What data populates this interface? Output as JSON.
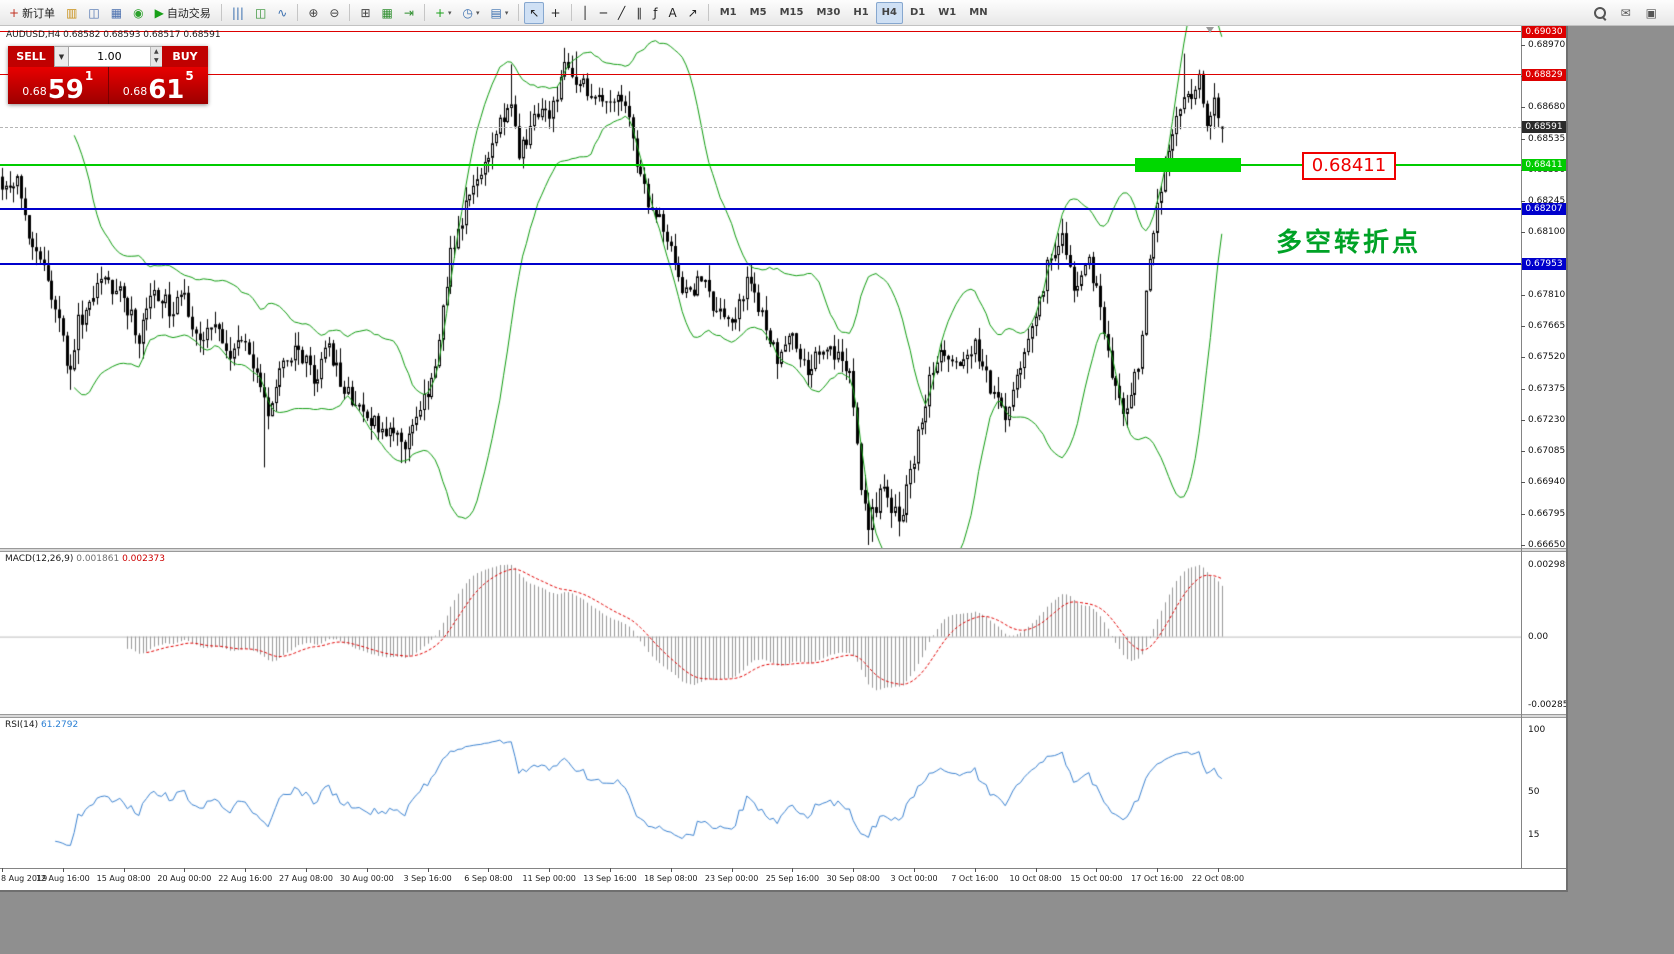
{
  "toolbar": {
    "new_order_label": "新订单",
    "autotrading_label": "自动交易",
    "groups": [
      [
        {
          "name": "new-order-button",
          "icon": "new-order-icon",
          "glyph": "+",
          "glyph_color": "#c03020",
          "label": "新订单"
        },
        {
          "name": "new-chart-button",
          "icon": "new-chart-icon",
          "glyph": "▥",
          "glyph_color": "#c89018"
        },
        {
          "name": "profiles-button",
          "icon": "profiles-icon",
          "glyph": "◫",
          "glyph_color": "#4a6fae"
        },
        {
          "name": "market-watch-button",
          "icon": "market-watch-icon",
          "glyph": "▦",
          "glyph_color": "#4a6fae"
        },
        {
          "name": "data-window-button",
          "icon": "data-window-icon",
          "glyph": "◉",
          "glyph_color": "#2aa02a"
        },
        {
          "name": "autotrading-button",
          "icon": "autotrading-play-icon",
          "glyph": "▶",
          "glyph_color": "#18a018",
          "label": "自动交易"
        }
      ],
      [
        {
          "name": "bar-chart-type-button",
          "icon": "bars-icon",
          "glyph": "|||",
          "glyph_color": "#3a6faf"
        },
        {
          "name": "candlestick-type-button",
          "icon": "candles-icon",
          "glyph": "◫",
          "glyph_color": "#2f8f2f"
        },
        {
          "name": "line-chart-type-button",
          "icon": "line-chart-icon",
          "glyph": "∿",
          "glyph_color": "#3a6faf"
        }
      ],
      [
        {
          "name": "zoom-in-button",
          "icon": "zoom-in-icon",
          "glyph": "⊕",
          "glyph_color": "#444444"
        },
        {
          "name": "zoom-out-button",
          "icon": "zoom-out-icon",
          "glyph": "⊖",
          "glyph_color": "#444444"
        }
      ],
      [
        {
          "name": "tile-windows-button",
          "icon": "tile-windows-icon",
          "glyph": "⊞",
          "glyph_color": "#444444"
        },
        {
          "name": "arrange-charts-button",
          "icon": "arrange-charts-icon",
          "glyph": "▦",
          "glyph_color": "#2f8f2f"
        },
        {
          "name": "chart-shift-button",
          "icon": "chart-shift-icon",
          "glyph": "⇥",
          "glyph_color": "#2f8f2f"
        }
      ],
      [
        {
          "name": "indicators-button",
          "icon": "indicator-plus-icon",
          "glyph": "+",
          "glyph_color": "#18a018",
          "caret": true
        },
        {
          "name": "periods-button",
          "icon": "clock-icon",
          "glyph": "◷",
          "glyph_color": "#3a6faf",
          "caret": true
        },
        {
          "name": "templates-button",
          "icon": "template-icon",
          "glyph": "▤",
          "glyph_color": "#3a6faf",
          "caret": true
        }
      ],
      [
        {
          "name": "cursor-button",
          "icon": "cursor-arrow-icon",
          "glyph": "↖",
          "glyph_color": "#222222",
          "active": true
        },
        {
          "name": "crosshair-button",
          "icon": "crosshair-icon",
          "glyph": "+",
          "glyph_color": "#222222"
        }
      ],
      [
        {
          "name": "vertical-line-tool-button",
          "icon": "vertical-line-icon",
          "glyph": "│",
          "glyph_color": "#222222"
        },
        {
          "name": "horizontal-line-tool-button",
          "icon": "horizontal-line-icon",
          "glyph": "─",
          "glyph_color": "#222222"
        },
        {
          "name": "trendline-tool-button",
          "icon": "trendline-icon",
          "glyph": "╱",
          "glyph_color": "#222222"
        },
        {
          "name": "channel-tool-button",
          "icon": "channel-icon",
          "glyph": "∥",
          "glyph_color": "#222222"
        },
        {
          "name": "fibonacci-tool-button",
          "icon": "fibonacci-icon",
          "glyph": "ƒ",
          "glyph_color": "#222222"
        },
        {
          "name": "text-tool-button",
          "icon": "text-icon",
          "glyph": "A",
          "glyph_color": "#222222"
        },
        {
          "name": "arrows-tool-button",
          "icon": "arrow-shapes-icon",
          "glyph": "↗",
          "glyph_color": "#222222"
        }
      ]
    ],
    "timeframes": [
      "M1",
      "M5",
      "M15",
      "M30",
      "H1",
      "H4",
      "D1",
      "W1",
      "MN"
    ],
    "active_timeframe": "H4",
    "right_icons": [
      {
        "name": "search-button",
        "icon": "search-icon",
        "type": "magnifier"
      },
      {
        "name": "community-button",
        "icon": "community-icon",
        "glyph": "✉",
        "glyph_color": "#555555"
      },
      {
        "name": "layout-button",
        "icon": "window-icon",
        "glyph": "▣",
        "glyph_color": "#555555"
      }
    ]
  },
  "one_click": {
    "sell_label": "SELL",
    "buy_label": "BUY",
    "volume": "1.00",
    "sell_price_small": "0.68",
    "sell_price_big": "59",
    "sell_price_sup": "1",
    "buy_price_small": "0.68",
    "buy_price_big": "61",
    "buy_price_sup": "5"
  },
  "chart": {
    "title": "AUDUSD,H4",
    "ohlc": "0.68582 0.68593 0.68517 0.68591",
    "annotation_box": "0.68411",
    "annotation_text": "多空转折点"
  },
  "macd": {
    "label": "MACD(12,26,9)",
    "value": "0.001861",
    "signal": "0.002373"
  },
  "rsi": {
    "label": "RSI(14)",
    "value": "61.2792"
  },
  "colors": {
    "level_red": "#dd0000",
    "level_green": "#00cc00",
    "level_blue": "#0000cc",
    "bollinger_green": "#0e9b0e",
    "macd_histogram": "#999999",
    "macd_signal": "#e00000",
    "rsi_line": "#3b82d0",
    "current_price_tag": "#2b2b2b",
    "highlight_green": "#00d800",
    "annotation_red": "#ef0000",
    "annotation_green": "#00a226"
  },
  "chart_data": [
    {
      "type": "candlestick",
      "title": "AUDUSD,H4",
      "symbol": "AUDUSD",
      "timeframe": "H4",
      "ohlc_current": {
        "open": 0.68582,
        "high": 0.68593,
        "low": 0.68517,
        "close": 0.68591
      },
      "current_price": 0.68591,
      "ylim": [
        0.6665,
        0.69058
      ],
      "y_axis_ticks": [
        0.6897,
        0.68825,
        0.6868,
        0.68535,
        0.6839,
        0.68245,
        0.681,
        0.67955,
        0.6781,
        0.67665,
        0.6752,
        0.67375,
        0.6723,
        0.67085,
        0.6694,
        0.66795,
        0.6665
      ],
      "bars_per_x_tick": 16,
      "x_tick_labels": [
        "8 Aug 2019",
        "12 Aug 16:00",
        "15 Aug 08:00",
        "20 Aug 00:00",
        "22 Aug 16:00",
        "27 Aug 08:00",
        "30 Aug 00:00",
        "3 Sep 16:00",
        "6 Sep 08:00",
        "11 Sep 00:00",
        "13 Sep 16:00",
        "18 Sep 08:00",
        "23 Sep 00:00",
        "25 Sep 16:00",
        "30 Sep 08:00",
        "3 Oct 00:00",
        "7 Oct 16:00",
        "10 Oct 08:00",
        "15 Oct 00:00",
        "17 Oct 16:00",
        "22 Oct 08:00"
      ],
      "close_path_anchors": [
        [
          0,
          0.6828
        ],
        [
          4,
          0.6836
        ],
        [
          8,
          0.68
        ],
        [
          12,
          0.679
        ],
        [
          16,
          0.6758
        ],
        [
          18,
          0.6745
        ],
        [
          20,
          0.6768
        ],
        [
          26,
          0.6788
        ],
        [
          32,
          0.678
        ],
        [
          36,
          0.6762
        ],
        [
          40,
          0.6784
        ],
        [
          44,
          0.6775
        ],
        [
          48,
          0.678
        ],
        [
          52,
          0.6758
        ],
        [
          56,
          0.6768
        ],
        [
          60,
          0.6755
        ],
        [
          64,
          0.676
        ],
        [
          68,
          0.6742
        ],
        [
          70,
          0.6725
        ],
        [
          74,
          0.6752
        ],
        [
          78,
          0.6756
        ],
        [
          82,
          0.6742
        ],
        [
          86,
          0.6756
        ],
        [
          90,
          0.6738
        ],
        [
          94,
          0.673
        ],
        [
          98,
          0.6722
        ],
        [
          102,
          0.6718
        ],
        [
          106,
          0.6712
        ],
        [
          110,
          0.673
        ],
        [
          114,
          0.6745
        ],
        [
          118,
          0.68
        ],
        [
          122,
          0.6822
        ],
        [
          126,
          0.6838
        ],
        [
          130,
          0.6858
        ],
        [
          134,
          0.687
        ],
        [
          136,
          0.6845
        ],
        [
          140,
          0.6862
        ],
        [
          144,
          0.6865
        ],
        [
          148,
          0.6885
        ],
        [
          152,
          0.688
        ],
        [
          156,
          0.6875
        ],
        [
          160,
          0.6868
        ],
        [
          164,
          0.6872
        ],
        [
          166,
          0.685
        ],
        [
          170,
          0.6822
        ],
        [
          174,
          0.6812
        ],
        [
          176,
          0.68
        ],
        [
          180,
          0.6781
        ],
        [
          184,
          0.6788
        ],
        [
          188,
          0.6772
        ],
        [
          192,
          0.677
        ],
        [
          196,
          0.6786
        ],
        [
          200,
          0.677
        ],
        [
          204,
          0.6752
        ],
        [
          208,
          0.676
        ],
        [
          212,
          0.6745
        ],
        [
          216,
          0.6758
        ],
        [
          220,
          0.6752
        ],
        [
          223,
          0.6745
        ],
        [
          226,
          0.669
        ],
        [
          228,
          0.6676
        ],
        [
          232,
          0.6692
        ],
        [
          236,
          0.6675
        ],
        [
          240,
          0.6706
        ],
        [
          244,
          0.6742
        ],
        [
          248,
          0.6756
        ],
        [
          252,
          0.6746
        ],
        [
          256,
          0.6758
        ],
        [
          260,
          0.6738
        ],
        [
          264,
          0.6727
        ],
        [
          268,
          0.6748
        ],
        [
          272,
          0.6773
        ],
        [
          276,
          0.68
        ],
        [
          279,
          0.681
        ],
        [
          282,
          0.6782
        ],
        [
          286,
          0.6795
        ],
        [
          289,
          0.6776
        ],
        [
          292,
          0.674
        ],
        [
          296,
          0.6726
        ],
        [
          299,
          0.675
        ],
        [
          302,
          0.6796
        ],
        [
          305,
          0.6833
        ],
        [
          308,
          0.6855
        ],
        [
          311,
          0.6876
        ],
        [
          313,
          0.6868
        ],
        [
          315,
          0.688
        ],
        [
          317,
          0.6862
        ],
        [
          319,
          0.6872
        ],
        [
          321,
          0.68591
        ]
      ],
      "wick_spikes": [
        {
          "i": 18,
          "low": 0.6737
        },
        {
          "i": 69,
          "low": 0.6701
        },
        {
          "i": 105,
          "low": 0.6703
        },
        {
          "i": 134,
          "high": 0.6888
        },
        {
          "i": 148,
          "high": 0.6895
        },
        {
          "i": 151,
          "high": 0.6894
        },
        {
          "i": 228,
          "low": 0.6665
        },
        {
          "i": 236,
          "low": 0.6669
        },
        {
          "i": 311,
          "high": 0.6893
        }
      ],
      "overlays": {
        "bollinger": {
          "period": 20,
          "deviation": 2
        },
        "horizontal_lines": [
          {
            "price": 0.6903,
            "color": "#dd0000",
            "width": 1
          },
          {
            "price": 0.68829,
            "color": "#dd0000",
            "width": 1
          },
          {
            "price": 0.68411,
            "color": "#00cc00",
            "width": 2
          },
          {
            "price": 0.68207,
            "color": "#0000cc",
            "width": 2
          },
          {
            "price": 0.67953,
            "color": "#0000cc",
            "width": 2
          }
        ],
        "highlight_rect": {
          "price": 0.68411,
          "x": 1135,
          "width": 106
        }
      }
    },
    {
      "type": "bar",
      "name": "MACD",
      "params": [
        12,
        26,
        9
      ],
      "current_values": [
        0.001861,
        0.002373
      ],
      "y_ticks": [
        "0.002989",
        "0.00",
        "-0.002858"
      ]
    },
    {
      "type": "line",
      "name": "RSI",
      "period": 14,
      "current_value": 61.2792,
      "y_ticks": [
        "100",
        "50",
        "15"
      ]
    }
  ]
}
